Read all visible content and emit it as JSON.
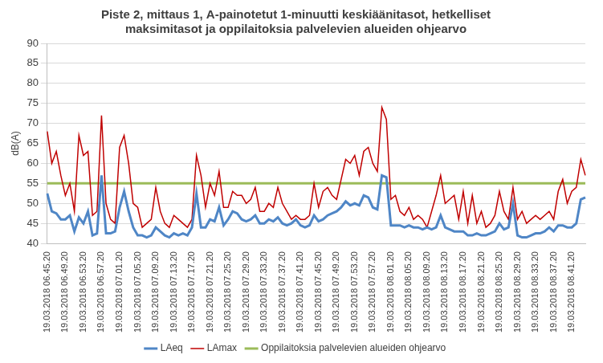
{
  "chart_data": {
    "type": "line",
    "title": [
      "Piste 2, mittaus 1, A-painotetut 1-minuutti keskiäänitasot, hetkelliset",
      "maksimitasot ja oppilaitoksia palvelevien alueiden ohjearvo"
    ],
    "y_label": "dB(A)",
    "categories": [
      "19.03.2018 06.45.20",
      null,
      null,
      null,
      "19.03.2018 06.49.20",
      null,
      null,
      null,
      "19.03.2018 06.53.20",
      null,
      null,
      null,
      "19.03.2018 06.57.20",
      null,
      null,
      null,
      "19.03.2018 07.01.20",
      null,
      null,
      null,
      "19.03.2018 07.05.20",
      null,
      null,
      null,
      "19.03.2018 07.09.20",
      null,
      null,
      null,
      "19.03.2018 07.13.20",
      null,
      null,
      null,
      "19.03.2018 07.17.20",
      null,
      null,
      null,
      "19.03.2018 07.21.20",
      null,
      null,
      null,
      "19.03.2018 07.25.20",
      null,
      null,
      null,
      "19.03.2018 07.29.20",
      null,
      null,
      null,
      "19.03.2018 07.33.20",
      null,
      null,
      null,
      "19.03.2018 07.37.20",
      null,
      null,
      null,
      "19.03.2018 07.41.20",
      null,
      null,
      null,
      "19.03.2018 07.45.20",
      null,
      null,
      null,
      "19.03.2018 07.49.20",
      null,
      null,
      null,
      "19.03.2018 07.53.20",
      null,
      null,
      null,
      "19.03.2018 07.57.20",
      null,
      null,
      null,
      "19.03.2018 08.01.20",
      null,
      null,
      null,
      "19.03.2018 08.05.20",
      null,
      null,
      null,
      "19.03.2018 08.09.20",
      null,
      null,
      null,
      "19.03.2018 08.13.20",
      null,
      null,
      null,
      "19.03.2018 08.17.20",
      null,
      null,
      null,
      "19.03.2018 08.21.20",
      null,
      null,
      null,
      "19.03.2018 08.25.20",
      null,
      null,
      null,
      "19.03.2018 08.29.20",
      null,
      null,
      null,
      "19.03.2018 08.33.20",
      null,
      null,
      null,
      "19.03.2018 08.37.20",
      null,
      null,
      null,
      "19.03.2018 08.41.20",
      null,
      null,
      null
    ],
    "series": [
      {
        "name": "LAeq",
        "color": "#4f86c6",
        "values": [
          52.5,
          48,
          47.5,
          46,
          46,
          47,
          43,
          46.5,
          45,
          48,
          42,
          42.5,
          57,
          42.5,
          42.5,
          43,
          49,
          53,
          48,
          44,
          42,
          42,
          41.5,
          42,
          44,
          43,
          42,
          41.5,
          42.5,
          42,
          42.5,
          42,
          44,
          52.5,
          44,
          44,
          46,
          45.5,
          49,
          44.5,
          46,
          48,
          47.5,
          46,
          45.5,
          46,
          47,
          45,
          45,
          46,
          45.5,
          46.5,
          45,
          44.5,
          45,
          46,
          44.5,
          44,
          44.5,
          47,
          45.5,
          46,
          47,
          47.5,
          48,
          49,
          50.5,
          49.5,
          50,
          49.5,
          52,
          51.5,
          49,
          48.5,
          57,
          56.5,
          44.5,
          44.5,
          44.5,
          44,
          44.5,
          44,
          44,
          43.5,
          44,
          43.5,
          44,
          47,
          44,
          43.5,
          43,
          43,
          43,
          42,
          42,
          42.5,
          42,
          42,
          42.5,
          43,
          45,
          43.5,
          44,
          50,
          42,
          41.5,
          41.5,
          42,
          42.5,
          42.5,
          43,
          44,
          43,
          44.5,
          44.5,
          44,
          44,
          45,
          51,
          51.5
        ]
      },
      {
        "name": "LAmax",
        "color": "#c00000",
        "values": [
          68,
          60,
          63,
          57,
          52,
          55,
          48,
          67,
          62,
          63,
          47,
          48,
          72,
          50,
          46,
          45,
          64,
          67,
          60,
          50,
          49,
          44,
          45,
          46,
          54,
          48,
          45,
          44,
          47,
          46,
          45,
          44,
          46,
          62,
          57,
          49,
          55,
          52,
          58,
          49,
          49,
          53,
          52,
          52,
          50,
          51,
          54,
          48,
          48,
          50,
          49,
          54,
          50,
          48,
          46,
          47,
          46,
          46,
          47,
          55,
          49,
          53,
          54,
          52,
          51,
          56,
          61,
          60,
          62,
          57,
          63,
          64,
          60,
          58,
          74,
          71,
          51,
          52,
          48,
          47,
          49,
          46,
          47,
          46,
          44,
          48,
          52,
          57,
          50,
          51,
          52,
          46,
          53,
          45,
          52,
          45,
          48,
          44,
          45,
          47,
          53,
          48,
          46,
          54,
          46,
          48,
          45,
          46,
          47,
          46,
          47,
          48,
          46,
          53,
          56,
          50,
          53,
          54,
          61,
          57
        ]
      },
      {
        "name": "Oppilaitoksia palvelevien alueiden ohjearvo",
        "color": "#9bbb59",
        "values": [
          55,
          55,
          55,
          55,
          55,
          55,
          55,
          55,
          55,
          55,
          55,
          55,
          55,
          55,
          55,
          55,
          55,
          55,
          55,
          55,
          55,
          55,
          55,
          55,
          55,
          55,
          55,
          55,
          55,
          55,
          55,
          55,
          55,
          55,
          55,
          55,
          55,
          55,
          55,
          55,
          55,
          55,
          55,
          55,
          55,
          55,
          55,
          55,
          55,
          55,
          55,
          55,
          55,
          55,
          55,
          55,
          55,
          55,
          55,
          55,
          55,
          55,
          55,
          55,
          55,
          55,
          55,
          55,
          55,
          55,
          55,
          55,
          55,
          55,
          55,
          55,
          55,
          55,
          55,
          55,
          55,
          55,
          55,
          55,
          55,
          55,
          55,
          55,
          55,
          55,
          55,
          55,
          55,
          55,
          55,
          55,
          55,
          55,
          55,
          55,
          55,
          55,
          55,
          55,
          55,
          55,
          55,
          55,
          55,
          55,
          55,
          55,
          55,
          55,
          55,
          55,
          55,
          55,
          55,
          55
        ]
      }
    ],
    "ylim": [
      40,
      90
    ],
    "yticks": [
      40,
      45,
      50,
      55,
      60,
      65,
      70,
      75,
      80,
      85,
      90
    ],
    "grid": true,
    "legend": "bottom"
  }
}
